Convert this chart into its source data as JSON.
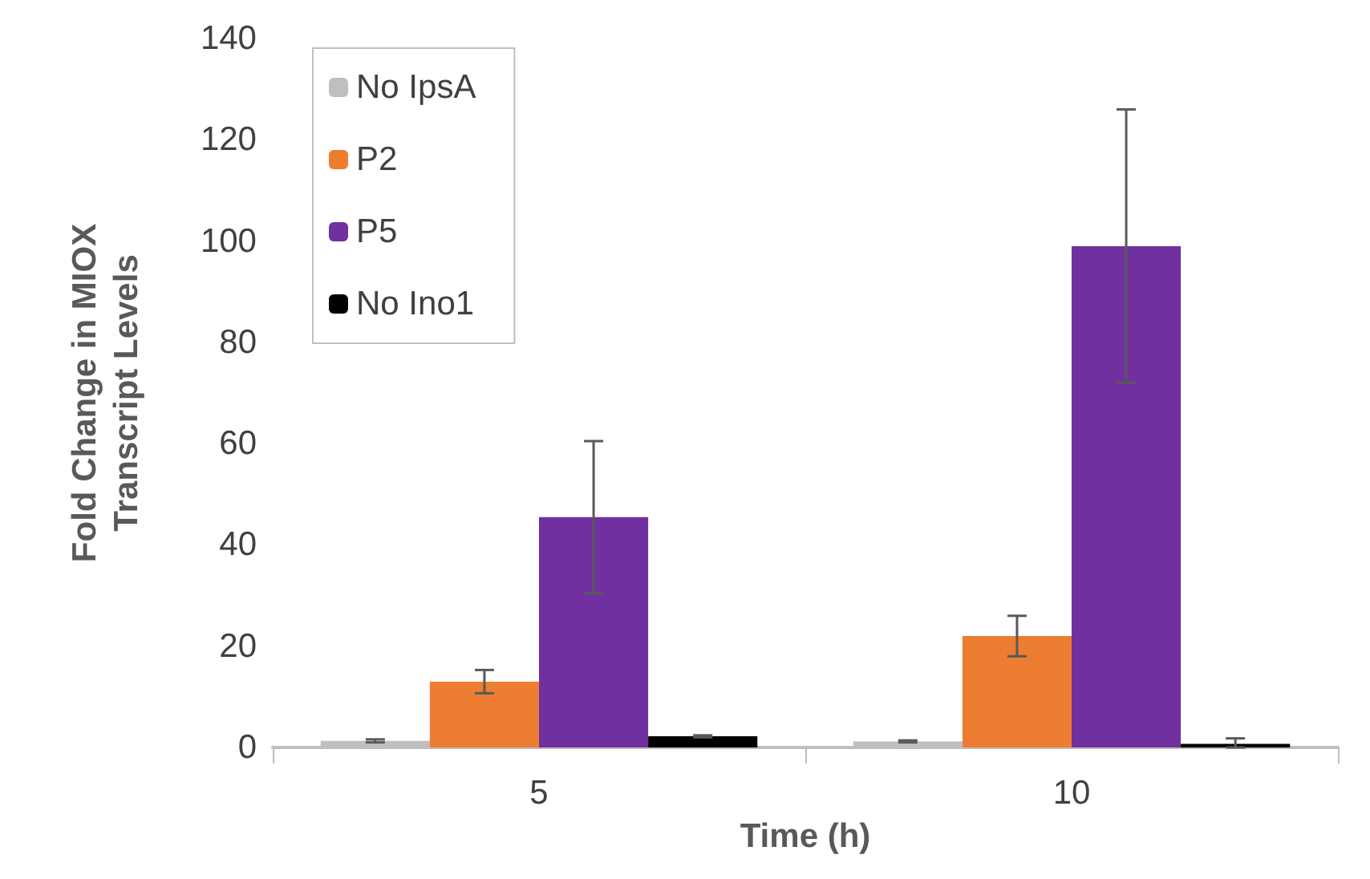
{
  "chart_data": {
    "type": "bar",
    "xlabel": "Time (h)",
    "ylabel": "Fold Change in MIOX\nTranscript Levels",
    "categories": [
      "5",
      "10"
    ],
    "series": [
      {
        "name": "No IpsA",
        "color": "#bfbfbf",
        "values": [
          1.3,
          1.2
        ],
        "errors": [
          0.3,
          0.2
        ]
      },
      {
        "name": "P2",
        "color": "#ed7d31",
        "values": [
          13,
          22
        ],
        "errors": [
          2.3,
          4
        ]
      },
      {
        "name": "P5",
        "color": "#7030a0",
        "values": [
          45.5,
          99
        ],
        "errors": [
          15,
          27
        ]
      },
      {
        "name": "No Ino1",
        "color": "#000000",
        "values": [
          2.2,
          0.7
        ],
        "errors": [
          0.2,
          [
            0.7,
            1.1
          ]
        ]
      }
    ],
    "ylim": [
      0,
      140
    ],
    "yticks": [
      0,
      20,
      40,
      60,
      80,
      100,
      120,
      140
    ],
    "grid": false,
    "legend": "top left"
  }
}
